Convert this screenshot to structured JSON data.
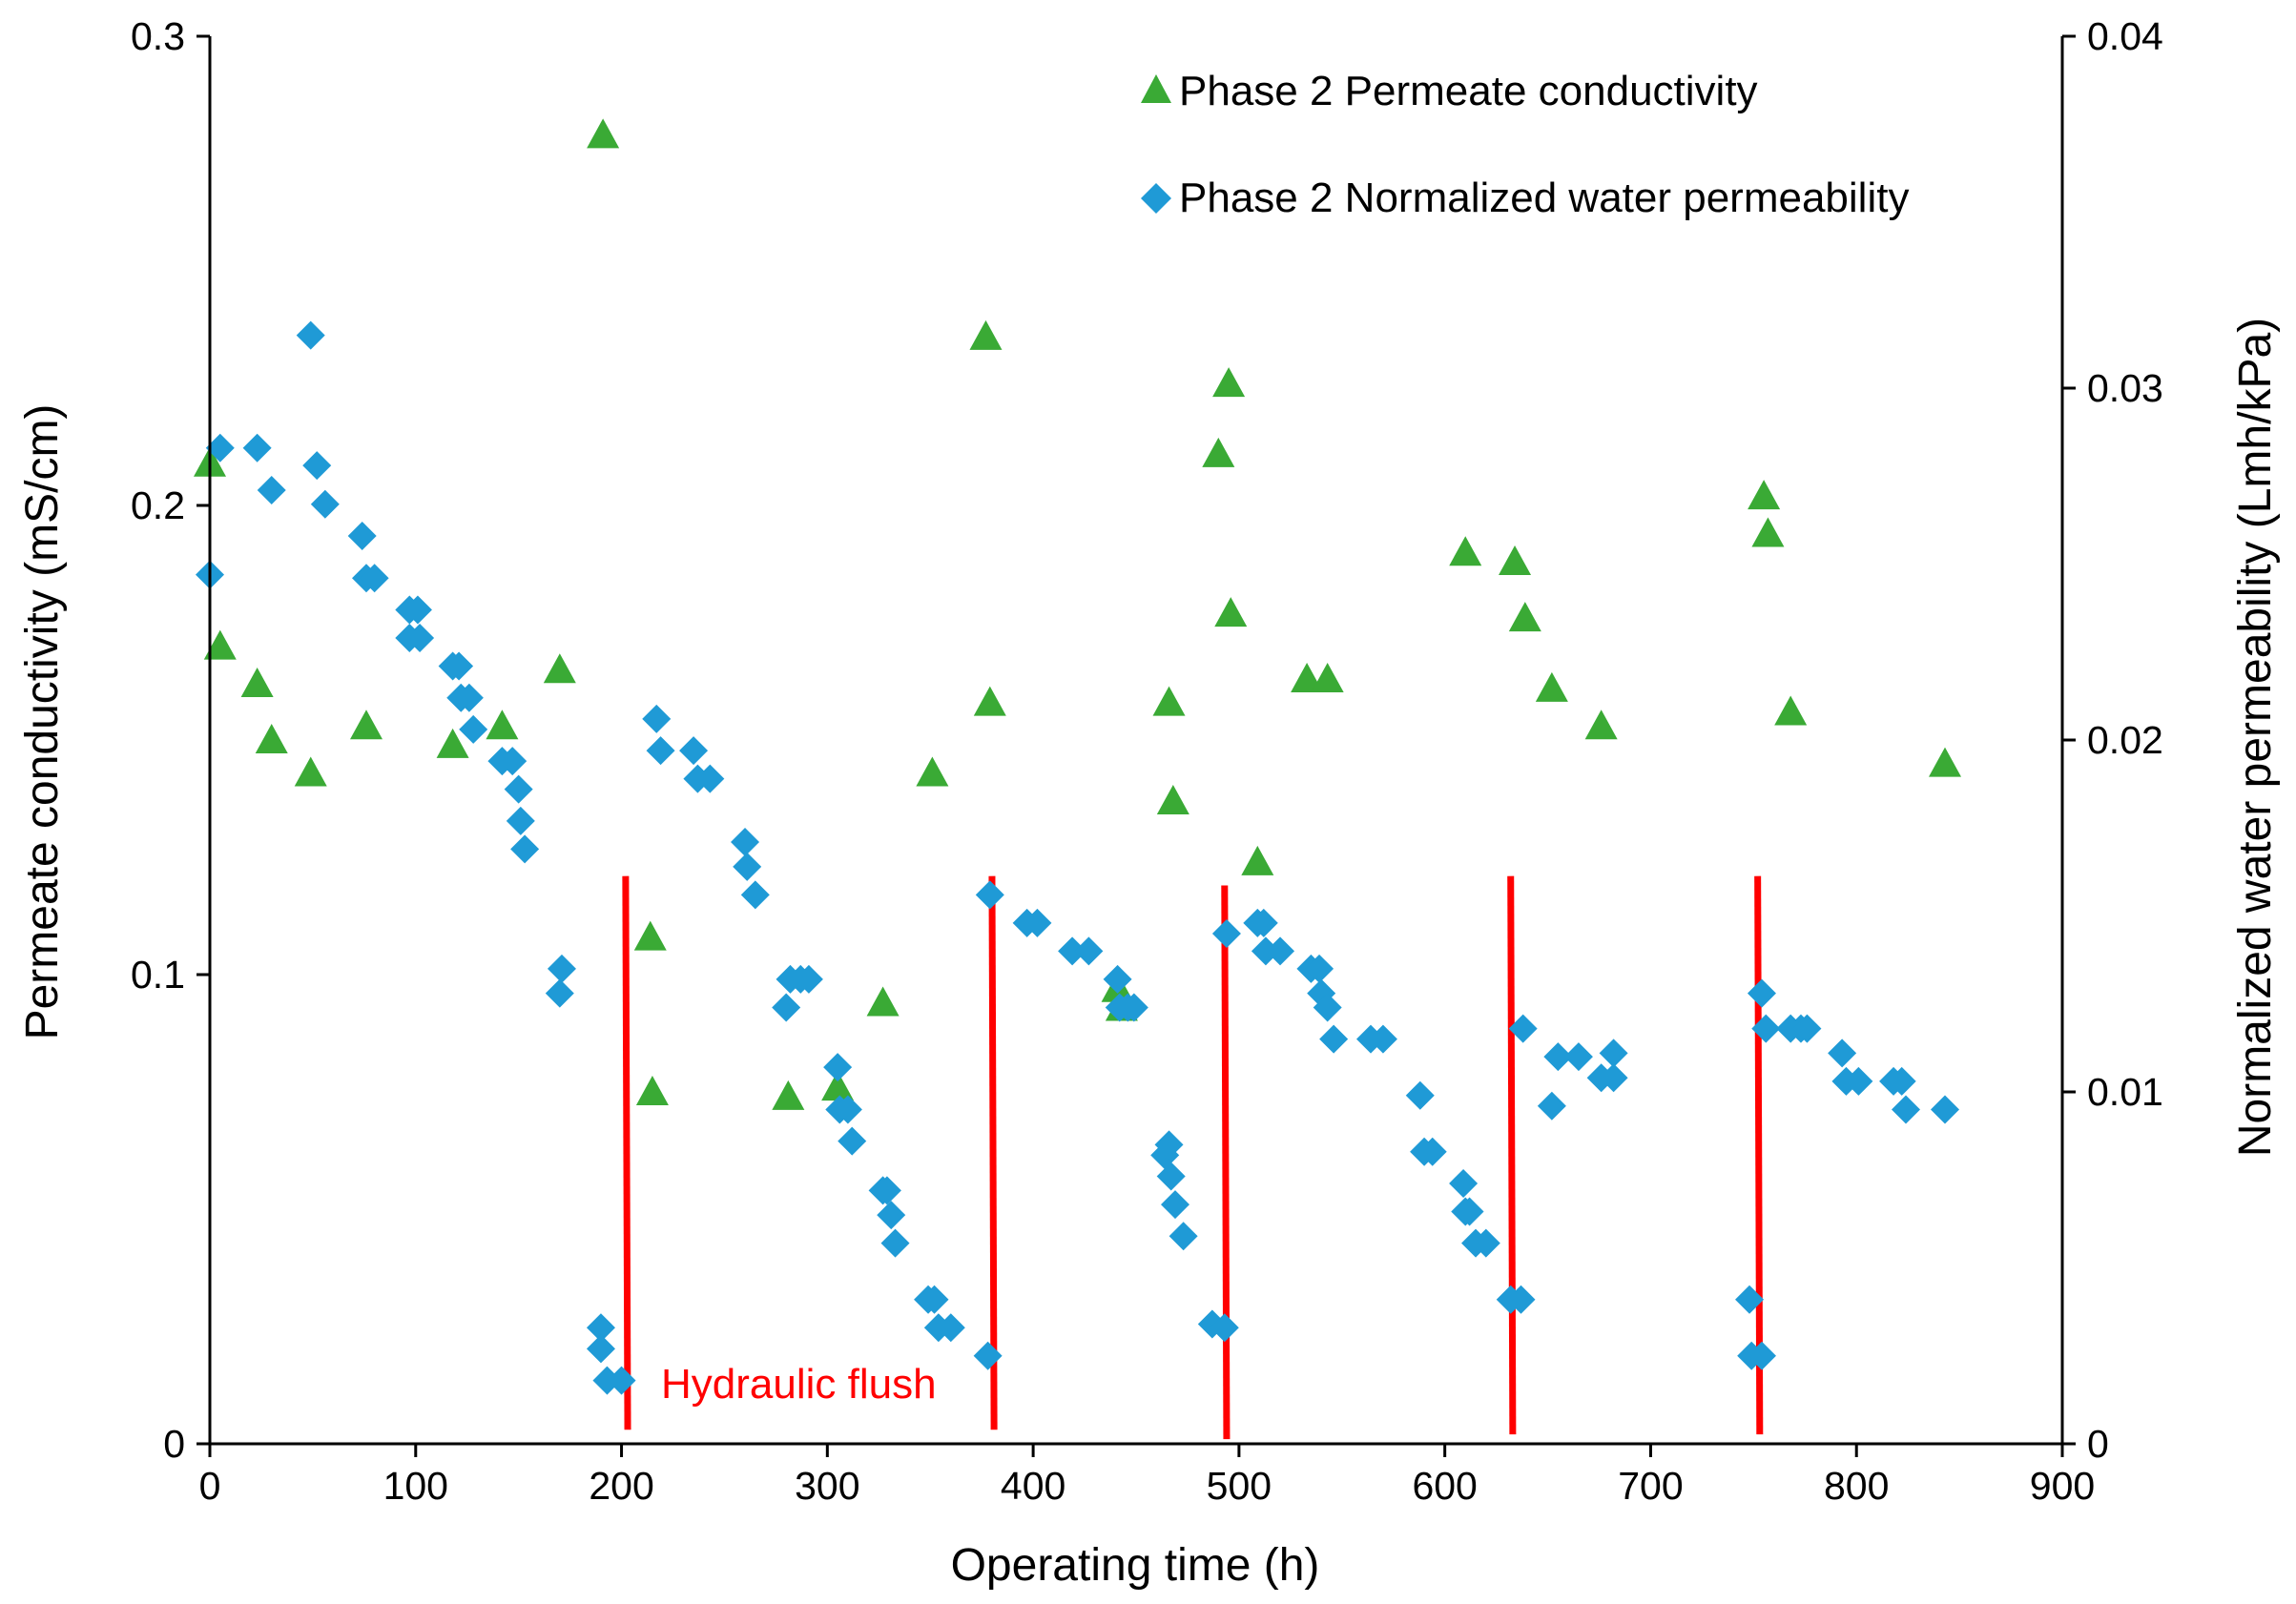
{
  "chart_data": {
    "type": "scatter",
    "title": "",
    "xlabel": "Operating time (h)",
    "ylabel_left": "Permeate conductivity (mS/cm)",
    "ylabel_right": "Normalized water permeability (Lmh/kPa)",
    "xlim": [
      0,
      900
    ],
    "ylim_left": [
      0,
      0.3
    ],
    "ylim_right": [
      0,
      0.04
    ],
    "x_ticks": [
      "0",
      "100",
      "200",
      "300",
      "400",
      "500",
      "600",
      "700",
      "800",
      "900"
    ],
    "y_left_ticks": [
      "0",
      "0.1",
      "0.2",
      "0.3"
    ],
    "y_right_ticks": [
      "0",
      "0.01",
      "0.02",
      "0.03",
      "0.04"
    ],
    "grid": false,
    "legend_position": "top-right",
    "series": [
      {
        "name": "Phase 2 Permeate conductivity",
        "axis": "left",
        "marker": "triangle",
        "color": "#3aaa35",
        "points": [
          [
            0,
            0.209
          ],
          [
            5,
            0.17
          ],
          [
            23,
            0.162
          ],
          [
            30,
            0.15
          ],
          [
            49,
            0.143
          ],
          [
            76,
            0.153
          ],
          [
            118,
            0.149
          ],
          [
            142,
            0.153
          ],
          [
            170,
            0.165
          ],
          [
            191,
            0.279
          ],
          [
            214,
            0.108
          ],
          [
            215,
            0.075
          ],
          [
            281,
            0.074
          ],
          [
            305,
            0.076
          ],
          [
            327,
            0.094
          ],
          [
            351,
            0.143
          ],
          [
            377,
            0.236
          ],
          [
            379,
            0.158
          ],
          [
            441,
            0.097
          ],
          [
            443,
            0.093
          ],
          [
            466,
            0.158
          ],
          [
            468,
            0.137
          ],
          [
            490,
            0.211
          ],
          [
            495,
            0.226
          ],
          [
            496,
            0.177
          ],
          [
            509,
            0.124
          ],
          [
            533,
            0.163
          ],
          [
            543,
            0.163
          ],
          [
            610,
            0.19
          ],
          [
            634,
            0.188
          ],
          [
            639,
            0.176
          ],
          [
            652,
            0.161
          ],
          [
            676,
            0.153
          ],
          [
            755,
            0.202
          ],
          [
            757,
            0.194
          ],
          [
            768,
            0.156
          ],
          [
            843,
            0.145
          ]
        ]
      },
      {
        "name": "Phase 2 Normalized water permeability",
        "axis": "right",
        "marker": "diamond",
        "color": "#1f9ad6",
        "points": [
          [
            0,
            0.0247
          ],
          [
            5,
            0.0283
          ],
          [
            23,
            0.0283
          ],
          [
            30,
            0.0271
          ],
          [
            49,
            0.0315
          ],
          [
            52,
            0.0278
          ],
          [
            56,
            0.0267
          ],
          [
            74,
            0.0258
          ],
          [
            76,
            0.0246
          ],
          [
            80,
            0.0246
          ],
          [
            97,
            0.0237
          ],
          [
            101,
            0.0237
          ],
          [
            97,
            0.0229
          ],
          [
            102,
            0.0229
          ],
          [
            118,
            0.0221
          ],
          [
            121,
            0.0221
          ],
          [
            122,
            0.0212
          ],
          [
            126,
            0.0212
          ],
          [
            128,
            0.0203
          ],
          [
            142,
            0.0194
          ],
          [
            147,
            0.0194
          ],
          [
            150,
            0.0186
          ],
          [
            151,
            0.0177
          ],
          [
            153,
            0.0169
          ],
          [
            170,
            0.0128
          ],
          [
            171,
            0.0135
          ],
          [
            190,
            0.0033
          ],
          [
            190,
            0.0027
          ],
          [
            193,
            0.0018
          ],
          [
            200,
            0.0018
          ],
          [
            217,
            0.0206
          ],
          [
            219,
            0.0197
          ],
          [
            235,
            0.0197
          ],
          [
            237,
            0.0189
          ],
          [
            243,
            0.0189
          ],
          [
            260,
            0.0171
          ],
          [
            261,
            0.0164
          ],
          [
            265,
            0.0156
          ],
          [
            280,
            0.0124
          ],
          [
            282,
            0.0132
          ],
          [
            287,
            0.0132
          ],
          [
            291,
            0.0132
          ],
          [
            305,
            0.0107
          ],
          [
            306,
            0.0095
          ],
          [
            310,
            0.0095
          ],
          [
            312,
            0.0086
          ],
          [
            327,
            0.0072
          ],
          [
            329,
            0.0072
          ],
          [
            331,
            0.0065
          ],
          [
            333,
            0.0057
          ],
          [
            349,
            0.0041
          ],
          [
            352,
            0.0041
          ],
          [
            354,
            0.0033
          ],
          [
            360,
            0.0033
          ],
          [
            378,
            0.0025
          ],
          [
            379,
            0.0156
          ],
          [
            397,
            0.0148
          ],
          [
            402,
            0.0148
          ],
          [
            419,
            0.014
          ],
          [
            427,
            0.014
          ],
          [
            441,
            0.0132
          ],
          [
            442,
            0.0124
          ],
          [
            446,
            0.0124
          ],
          [
            449,
            0.0124
          ],
          [
            464,
            0.0082
          ],
          [
            466,
            0.0085
          ],
          [
            467,
            0.0076
          ],
          [
            469,
            0.0068
          ],
          [
            473,
            0.0059
          ],
          [
            487,
            0.0034
          ],
          [
            493,
            0.0033
          ],
          [
            494,
            0.0145
          ],
          [
            509,
            0.0148
          ],
          [
            512,
            0.0148
          ],
          [
            513,
            0.014
          ],
          [
            520,
            0.014
          ],
          [
            535,
            0.0135
          ],
          [
            539,
            0.0135
          ],
          [
            540,
            0.0128
          ],
          [
            543,
            0.0124
          ],
          [
            546,
            0.0115
          ],
          [
            564,
            0.0115
          ],
          [
            570,
            0.0115
          ],
          [
            588,
            0.0099
          ],
          [
            590,
            0.0083
          ],
          [
            594,
            0.0083
          ],
          [
            609,
            0.0074
          ],
          [
            610,
            0.0066
          ],
          [
            612,
            0.0066
          ],
          [
            615,
            0.0057
          ],
          [
            620,
            0.0057
          ],
          [
            632,
            0.0041
          ],
          [
            637,
            0.0041
          ],
          [
            638,
            0.0118
          ],
          [
            652,
            0.0096
          ],
          [
            655,
            0.011
          ],
          [
            665,
            0.011
          ],
          [
            676,
            0.0104
          ],
          [
            682,
            0.0104
          ],
          [
            682,
            0.0111
          ],
          [
            748,
            0.0041
          ],
          [
            749,
            0.0025
          ],
          [
            754,
            0.0025
          ],
          [
            754,
            0.0128
          ],
          [
            756,
            0.0118
          ],
          [
            768,
            0.0118
          ],
          [
            773,
            0.0118
          ],
          [
            776,
            0.0118
          ],
          [
            793,
            0.0111
          ],
          [
            795,
            0.0103
          ],
          [
            801,
            0.0103
          ],
          [
            818,
            0.0103
          ],
          [
            822,
            0.0103
          ],
          [
            824,
            0.0095
          ],
          [
            843,
            0.0095
          ]
        ]
      }
    ],
    "markers": {
      "label": "Hydraulic flush",
      "color": "#ff0000",
      "lines": [
        {
          "x1": 202,
          "y1": 0.121,
          "x2": 203,
          "y2": 0.003
        },
        {
          "x1": 380,
          "y1": 0.121,
          "x2": 381,
          "y2": 0.003
        },
        {
          "x1": 493,
          "y1": 0.119,
          "x2": 494,
          "y2": 0.001
        },
        {
          "x1": 632,
          "y1": 0.121,
          "x2": 633,
          "y2": 0.002
        },
        {
          "x1": 752,
          "y1": 0.121,
          "x2": 753,
          "y2": 0.002
        }
      ]
    }
  }
}
